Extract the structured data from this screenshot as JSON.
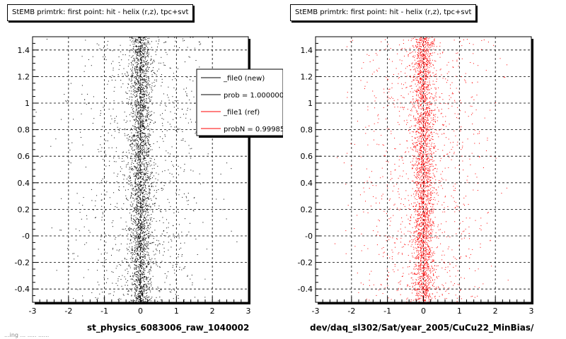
{
  "chart_data": [
    {
      "type": "scatter",
      "title": "StEMB primtrk: first point: hit - helix (r,z), tpc+svt",
      "xlabel": "st_physics_6083006_raw_1040002",
      "ylabel": "",
      "xlim": [
        -3,
        3
      ],
      "ylim": [
        -0.5,
        1.5
      ],
      "x_ticks": [
        "-3",
        "-2",
        "-1",
        "0",
        "1",
        "2",
        "3"
      ],
      "y_ticks": [
        "-0.4",
        "-0.2",
        "-0",
        "0.2",
        "0.4",
        "0.6",
        "0.8",
        "1",
        "1.2",
        "1.4"
      ],
      "grid": true,
      "marker_color": "#000000",
      "distribution": {
        "x_center": 0.0,
        "x_core_width": 0.15,
        "x_tail_width": 0.9,
        "y_range": [
          -0.5,
          1.5
        ]
      },
      "legend": {
        "placement": "top-right",
        "entries": [
          {
            "label": "_file0 (new)",
            "color": "#000000"
          },
          {
            "label": "prob = 1.000000",
            "color": "#000000"
          },
          {
            "label": "_file1 (ref)",
            "color": "#ff0000"
          },
          {
            "label": "probN = 0.99985",
            "color": "#ff0000"
          }
        ]
      }
    },
    {
      "type": "scatter",
      "title": "StEMB primtrk: first point: hit - helix (r,z), tpc+svt",
      "xlabel": "dev/daq_sl302/Sat/year_2005/CuCu22_MinBias/",
      "ylabel": "",
      "xlim": [
        -3,
        3
      ],
      "ylim": [
        -0.5,
        1.5
      ],
      "x_ticks": [
        "-3",
        "-2",
        "-1",
        "0",
        "1",
        "2",
        "3"
      ],
      "y_ticks": [
        "-0.4",
        "-0.2",
        "-0",
        "0.2",
        "0.4",
        "0.6",
        "0.8",
        "1",
        "1.2",
        "1.4"
      ],
      "grid": true,
      "marker_color": "#ff0000",
      "distribution": {
        "x_center": 0.0,
        "x_core_width": 0.15,
        "x_tail_width": 0.9,
        "y_range": [
          -0.5,
          1.5
        ]
      }
    }
  ],
  "corner_text": "...ing ... ..... ......"
}
